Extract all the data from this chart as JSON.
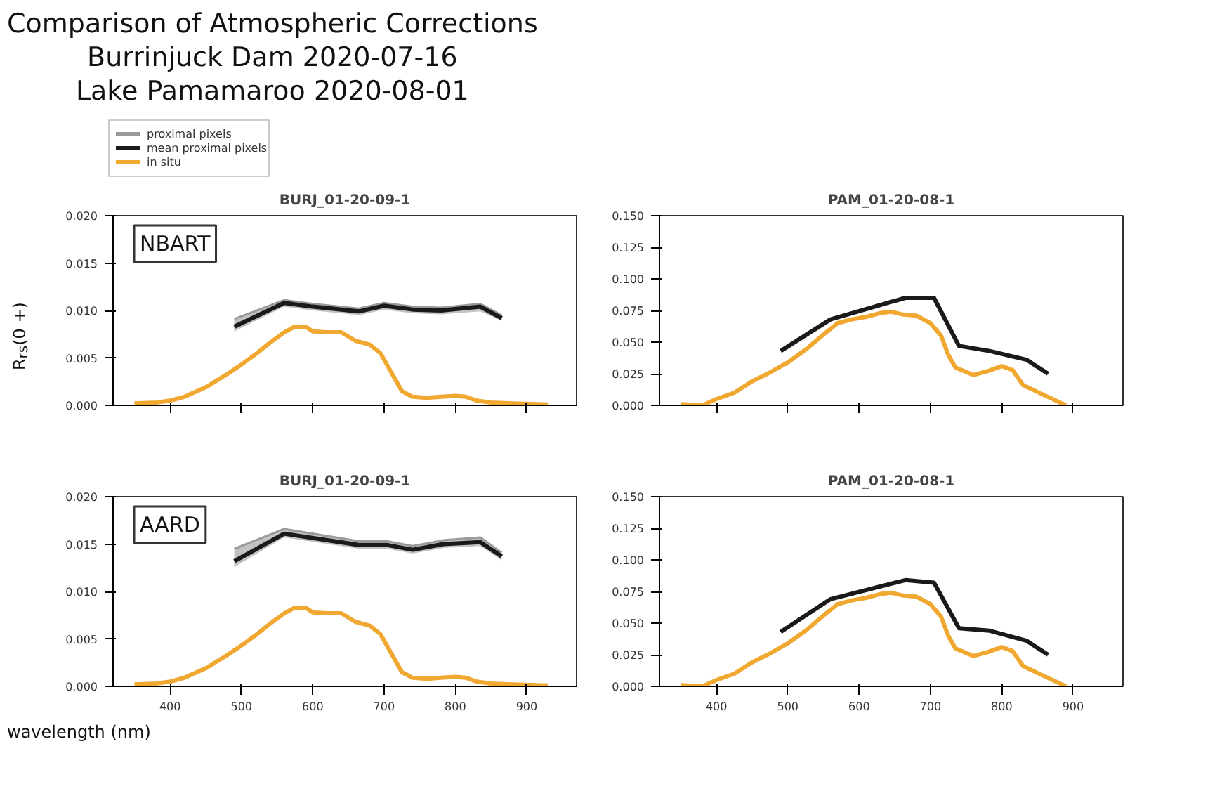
{
  "chart_data": [
    {
      "type": "other",
      "title": "Comparison of Atmospheric Corrections",
      "subtitle": "Burrinjuck Dam 2020-07-16\nLake Pamamaroo 2020-08-01",
      "xlabel": "wavelength (nm)"
    },
    {
      "type": "line",
      "title": "BURJ_01-20-09-1",
      "ylabel": "R$_{rs}$(0 +)",
      "annotations": [
        "NBART"
      ],
      "xlim": [
        320,
        970
      ],
      "ylim": [
        0,
        0.02
      ],
      "xticks": [
        400,
        500,
        600,
        700,
        800,
        900
      ],
      "yticks": [
        {
          "value": 0,
          "label": "0.000"
        },
        {
          "value": 0.005,
          "label": "0.005"
        },
        {
          "value": 0.01,
          "label": "0.010"
        },
        {
          "value": 0.015,
          "label": "0.015"
        },
        {
          "value": 0.02,
          "label": "0.020"
        }
      ],
      "tick_labels": "y",
      "legend": "top left",
      "grid": false,
      "series": [
        {
          "name": "proximal pixels",
          "color": "#9a9a9a",
          "x": [
            490,
            560,
            600,
            665,
            700,
            740,
            780,
            835,
            865
          ],
          "values": [
            0.0091,
            0.0111,
            0.0107,
            0.0102,
            0.0108,
            0.0104,
            0.0103,
            0.0107,
            0.0095
          ],
          "lower": [
            0.0078,
            0.0104,
            0.01,
            0.0095,
            0.0101,
            0.0097,
            0.0096,
            0.0099,
            0.0089
          ],
          "upper": [
            0.0091,
            0.0111,
            0.0107,
            0.0102,
            0.0108,
            0.0104,
            0.0103,
            0.0107,
            0.0095
          ]
        },
        {
          "name": "mean proximal pixels",
          "color": "#1a1a1a",
          "x": [
            490,
            560,
            600,
            665,
            700,
            740,
            780,
            835,
            865
          ],
          "values": [
            0.0083,
            0.0108,
            0.0104,
            0.0099,
            0.0105,
            0.0101,
            0.01,
            0.0104,
            0.0092
          ]
        },
        {
          "name": "in situ",
          "color": "#f0a830",
          "x": [
            350,
            380,
            400,
            420,
            450,
            480,
            500,
            520,
            540,
            560,
            575,
            590,
            600,
            620,
            640,
            660,
            680,
            695,
            710,
            725,
            740,
            760,
            780,
            800,
            815,
            830,
            850,
            880,
            930
          ],
          "values": [
            0.0002,
            0.0003,
            0.0005,
            0.0009,
            0.0019,
            0.0033,
            0.0043,
            0.0054,
            0.0066,
            0.0077,
            0.0083,
            0.0083,
            0.0078,
            0.0077,
            0.0077,
            0.0068,
            0.0064,
            0.0055,
            0.0035,
            0.0015,
            0.0009,
            0.0008,
            0.0009,
            0.001,
            0.0009,
            0.0005,
            0.0003,
            0.0002,
            0.0001
          ]
        }
      ]
    },
    {
      "type": "line",
      "title": "PAM_01-20-08-1",
      "xlim": [
        320,
        970
      ],
      "ylim": [
        0,
        0.15
      ],
      "xticks": [
        400,
        500,
        600,
        700,
        800,
        900
      ],
      "yticks": [
        {
          "value": 0,
          "label": "0.000"
        },
        {
          "value": 0.025,
          "label": "0.025"
        },
        {
          "value": 0.05,
          "label": "0.050"
        },
        {
          "value": 0.075,
          "label": "0.075"
        },
        {
          "value": 0.1,
          "label": "0.100"
        },
        {
          "value": 0.125,
          "label": "0.125"
        },
        {
          "value": 0.15,
          "label": "0.150"
        }
      ],
      "tick_labels": "y",
      "grid": false,
      "series": [
        {
          "color": "#1a1a1a",
          "x": [
            490,
            560,
            665,
            705,
            740,
            783,
            835,
            865
          ],
          "values": [
            0.043,
            0.068,
            0.085,
            0.085,
            0.047,
            0.043,
            0.036,
            0.025
          ]
        },
        {
          "color": "#f0a830",
          "x": [
            350,
            380,
            400,
            425,
            450,
            475,
            500,
            525,
            550,
            570,
            590,
            610,
            630,
            645,
            660,
            680,
            700,
            715,
            725,
            735,
            760,
            780,
            800,
            815,
            830,
            860,
            890
          ],
          "values": [
            0.001,
            0.0,
            0.005,
            0.01,
            0.019,
            0.026,
            0.034,
            0.044,
            0.056,
            0.065,
            0.068,
            0.07,
            0.073,
            0.074,
            0.072,
            0.071,
            0.065,
            0.055,
            0.04,
            0.03,
            0.024,
            0.027,
            0.031,
            0.028,
            0.016,
            0.008,
            0.0
          ]
        }
      ]
    },
    {
      "type": "line",
      "title": "BURJ_01-20-09-1",
      "annotations": [
        "AARD"
      ],
      "xlim": [
        320,
        970
      ],
      "ylim": [
        0,
        0.02
      ],
      "xticks": [
        400,
        500,
        600,
        700,
        800,
        900
      ],
      "yticks": [
        {
          "value": 0,
          "label": "0.000"
        },
        {
          "value": 0.005,
          "label": "0.005"
        },
        {
          "value": 0.01,
          "label": "0.010"
        },
        {
          "value": 0.015,
          "label": "0.015"
        },
        {
          "value": 0.02,
          "label": "0.020"
        }
      ],
      "grid": false,
      "series": [
        {
          "color": "#9a9a9a",
          "x": [
            490,
            560,
            665,
            705,
            740,
            783,
            835,
            865
          ],
          "values": [
            0.0145,
            0.0166,
            0.0153,
            0.0153,
            0.0148,
            0.0154,
            0.0157,
            0.0141
          ],
          "lower": [
            0.0126,
            0.0157,
            0.0145,
            0.0145,
            0.014,
            0.0146,
            0.0148,
            0.0133
          ],
          "upper": [
            0.0145,
            0.0166,
            0.0153,
            0.0153,
            0.0148,
            0.0154,
            0.0157,
            0.0141
          ]
        },
        {
          "color": "#1a1a1a",
          "x": [
            490,
            560,
            665,
            705,
            740,
            783,
            835,
            865
          ],
          "values": [
            0.0132,
            0.0161,
            0.0149,
            0.0149,
            0.0144,
            0.015,
            0.0152,
            0.0137
          ]
        },
        {
          "color": "#f0a830",
          "x": [
            350,
            380,
            400,
            420,
            450,
            480,
            500,
            520,
            540,
            560,
            575,
            590,
            600,
            620,
            640,
            660,
            680,
            695,
            710,
            725,
            740,
            760,
            780,
            800,
            815,
            830,
            850,
            880,
            930
          ],
          "values": [
            0.0002,
            0.0003,
            0.0005,
            0.0009,
            0.0019,
            0.0033,
            0.0043,
            0.0054,
            0.0066,
            0.0077,
            0.0083,
            0.0083,
            0.0078,
            0.0077,
            0.0077,
            0.0068,
            0.0064,
            0.0055,
            0.0035,
            0.0015,
            0.0009,
            0.0008,
            0.0009,
            0.001,
            0.0009,
            0.0005,
            0.0003,
            0.0002,
            0.0001
          ]
        }
      ]
    },
    {
      "type": "line",
      "title": "PAM_01-20-08-1",
      "xlim": [
        320,
        970
      ],
      "ylim": [
        0,
        0.15
      ],
      "xticks": [
        400,
        500,
        600,
        700,
        800,
        900
      ],
      "yticks": [
        {
          "value": 0,
          "label": "0.000"
        },
        {
          "value": 0.025,
          "label": "0.025"
        },
        {
          "value": 0.05,
          "label": "0.050"
        },
        {
          "value": 0.075,
          "label": "0.075"
        },
        {
          "value": 0.1,
          "label": "0.100"
        },
        {
          "value": 0.125,
          "label": "0.125"
        },
        {
          "value": 0.15,
          "label": "0.150"
        }
      ],
      "grid": false,
      "series": [
        {
          "color": "#1a1a1a",
          "x": [
            490,
            560,
            665,
            705,
            740,
            783,
            835,
            865
          ],
          "values": [
            0.043,
            0.069,
            0.084,
            0.082,
            0.046,
            0.044,
            0.036,
            0.025
          ]
        },
        {
          "color": "#f0a830",
          "x": [
            350,
            380,
            400,
            425,
            450,
            475,
            500,
            525,
            550,
            570,
            590,
            610,
            630,
            645,
            660,
            680,
            700,
            715,
            725,
            735,
            760,
            780,
            800,
            815,
            830,
            860,
            890
          ],
          "values": [
            0.001,
            0.0,
            0.005,
            0.01,
            0.019,
            0.026,
            0.034,
            0.044,
            0.056,
            0.065,
            0.068,
            0.07,
            0.073,
            0.074,
            0.072,
            0.071,
            0.065,
            0.055,
            0.04,
            0.03,
            0.024,
            0.027,
            0.031,
            0.028,
            0.016,
            0.008,
            0.0
          ]
        }
      ]
    }
  ]
}
